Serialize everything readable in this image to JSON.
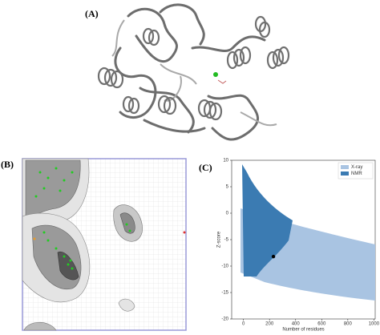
{
  "panels": {
    "a": {
      "label": "(A)"
    },
    "b": {
      "label": "(B)"
    },
    "c": {
      "label": "(C)"
    }
  },
  "chart_data": {
    "type": "scatter",
    "xlabel": "Number of residues",
    "ylabel": "Z-score",
    "xlim": [
      -90,
      1010
    ],
    "ylim": [
      -20,
      10
    ],
    "xticks": [
      0,
      200,
      400,
      600,
      800,
      1000
    ],
    "yticks": [
      10,
      5,
      0,
      -5,
      -10,
      -15,
      -20
    ],
    "series": [
      {
        "name": "X-ray",
        "color": "#a9c4e2"
      },
      {
        "name": "NMR",
        "color": "#3b7bb2"
      }
    ],
    "x": [
      230
    ],
    "values": [
      -8.2
    ],
    "color": "#000000",
    "legend": "upper right"
  }
}
